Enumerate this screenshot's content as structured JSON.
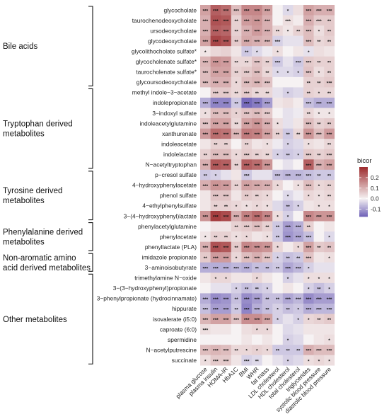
{
  "chart_data": {
    "type": "heatmap",
    "legend": {
      "title": "bicor",
      "ticks": [
        "0.2",
        "0.1",
        "0.0",
        "-0.1"
      ],
      "tick_values": [
        0.2,
        0.1,
        0.0,
        -0.1
      ],
      "range": [
        -0.17,
        0.3
      ],
      "placement": "right"
    },
    "columns": [
      "plasma glucose",
      "plasma insulin",
      "HOMA-IR",
      "HbA1C",
      "BMI",
      "WHR",
      "fat mass",
      "LDL cholesterol",
      "HDL cholesterol",
      "total cholesterol",
      "triglycerides",
      "systolic blood pressure",
      "diastolic blood pressure"
    ],
    "rows": [
      "glycocholate",
      "taurochenodeoxycholate",
      "ursodeoxycholate",
      "glycodeoxycholate",
      "glycolithocholate sulfate*",
      "glycocholenate sulfate*",
      "taurocholenate sulfate*",
      "glycoursodeoxycholate",
      "methyl indole−3−acetate",
      "indolepropionate",
      "3−indoxyl sulfate",
      "indoleacetylglutamine",
      "xanthurenate",
      "indoleacetate",
      "indolelactate",
      "N−acetyltryptophan",
      "p−cresol sulfate",
      "4−hydroxyphenylacetate",
      "phenol sulfate",
      "4−ethylphenylsulfate",
      "3−(4−hydroxyphenyl)lactate",
      "phenylacetylglutamine",
      "phenylacetate",
      "phenyllactate (PLA)",
      "imidazole propionate",
      "3−aminoisobutyrate",
      "trimethylamine N−oxide",
      "3−(3−hydroxyphenyl)propionate",
      "3−phenylpropionate (hydrocinnamate)",
      "hippurate",
      "isovalerate (i5:0)",
      "caproate (6:0)",
      "spermidine",
      "N−acetylputrescine",
      "succinate"
    ],
    "groups": [
      {
        "label": [
          "Bile acids"
        ],
        "rows": [
          0,
          7
        ]
      },
      {
        "label": [
          "Tryptophan derived",
          "metabolites"
        ],
        "rows": [
          8,
          15
        ]
      },
      {
        "label": [
          "Tyrosine derived",
          "metabolites"
        ],
        "rows": [
          16,
          20
        ]
      },
      {
        "label": [
          "Phenylalanine derived",
          "metabolites"
        ],
        "rows": [
          21,
          23
        ]
      },
      {
        "label": [
          "Non-aromatic amino",
          "acid derived metabolites"
        ],
        "rows": [
          24,
          25
        ]
      },
      {
        "label": [
          "Other metabolites"
        ],
        "rows": [
          26,
          34
        ]
      }
    ],
    "values": [
      [
        0.12,
        0.22,
        0.2,
        0.08,
        0.16,
        0.16,
        0.12,
        0.0,
        -0.03,
        0.03,
        0.12,
        0.1,
        0.1
      ],
      [
        0.1,
        0.24,
        0.23,
        0.05,
        0.13,
        0.14,
        0.1,
        0.0,
        0.03,
        0.01,
        0.1,
        0.06,
        0.06
      ],
      [
        0.1,
        0.22,
        0.21,
        0.05,
        0.1,
        0.13,
        0.1,
        0.04,
        0.02,
        0.05,
        0.08,
        0.03,
        0.06
      ],
      [
        0.12,
        0.26,
        0.24,
        0.06,
        0.11,
        0.1,
        0.09,
        -0.04,
        -0.02,
        -0.02,
        0.08,
        0.04,
        0.05
      ],
      [
        0.02,
        0.04,
        0.05,
        0.02,
        -0.05,
        -0.03,
        -0.01,
        0.03,
        0.0,
        0.02,
        -0.02,
        0.03,
        0.02
      ],
      [
        0.09,
        0.14,
        0.13,
        0.04,
        0.04,
        0.07,
        0.05,
        -0.05,
        -0.02,
        -0.05,
        0.06,
        0.05,
        0.05
      ],
      [
        0.08,
        0.12,
        0.12,
        0.05,
        0.06,
        0.08,
        0.04,
        -0.03,
        -0.03,
        -0.04,
        0.07,
        0.03,
        0.05
      ],
      [
        0.08,
        0.1,
        0.1,
        0.04,
        0.08,
        0.09,
        0.07,
        0.0,
        0.0,
        0.0,
        0.05,
        0.05,
        0.06
      ],
      [
        0.0,
        0.06,
        0.06,
        0.04,
        0.06,
        0.04,
        0.04,
        -0.02,
        -0.04,
        -0.03,
        0.05,
        0.04,
        0.04
      ],
      [
        -0.08,
        -0.13,
        -0.13,
        -0.05,
        -0.16,
        -0.14,
        -0.1,
        0.02,
        0.03,
        0.01,
        -0.06,
        -0.08,
        -0.08
      ],
      [
        0.03,
        0.08,
        0.08,
        0.05,
        0.07,
        0.08,
        0.06,
        0.0,
        -0.02,
        -0.01,
        0.04,
        0.02,
        0.02
      ],
      [
        0.07,
        0.12,
        0.12,
        0.04,
        0.12,
        0.14,
        0.1,
        0.03,
        -0.02,
        0.02,
        0.08,
        0.05,
        0.06
      ],
      [
        0.13,
        0.2,
        0.19,
        0.09,
        0.18,
        0.17,
        0.12,
        0.05,
        -0.05,
        0.04,
        0.14,
        0.08,
        0.13
      ],
      [
        0.02,
        0.05,
        0.05,
        0.0,
        0.05,
        0.02,
        0.03,
        -0.01,
        -0.04,
        -0.03,
        0.03,
        0.02,
        0.04
      ],
      [
        0.05,
        0.08,
        0.08,
        0.04,
        0.06,
        0.05,
        0.04,
        -0.04,
        -0.05,
        -0.04,
        0.06,
        0.05,
        0.06
      ],
      [
        0.1,
        0.23,
        0.22,
        0.05,
        0.22,
        0.2,
        0.14,
        0.0,
        -0.02,
        0.0,
        0.22,
        0.1,
        0.12
      ],
      [
        -0.05,
        -0.04,
        -0.02,
        0.02,
        -0.05,
        -0.02,
        -0.02,
        -0.06,
        -0.07,
        -0.07,
        -0.06,
        -0.05,
        -0.05
      ],
      [
        0.1,
        0.14,
        0.13,
        0.05,
        0.12,
        0.11,
        0.1,
        0.04,
        0.0,
        0.03,
        0.08,
        0.04,
        0.05
      ],
      [
        0.02,
        0.07,
        0.07,
        0.02,
        0.06,
        0.05,
        0.04,
        0.0,
        -0.03,
        -0.01,
        0.04,
        0.03,
        0.04
      ],
      [
        0.02,
        0.05,
        0.05,
        0.04,
        0.03,
        0.04,
        0.03,
        -0.03,
        -0.06,
        -0.04,
        0.02,
        0.03,
        0.03
      ],
      [
        0.14,
        0.27,
        0.25,
        0.1,
        0.17,
        0.2,
        0.16,
        0.03,
        -0.04,
        0.0,
        0.16,
        0.14,
        0.14
      ],
      [
        0.0,
        0.02,
        0.02,
        0.05,
        0.06,
        0.08,
        0.05,
        -0.05,
        -0.1,
        -0.08,
        0.05,
        0.0,
        0.02
      ],
      [
        0.02,
        0.05,
        0.05,
        0.03,
        0.04,
        0.02,
        0.03,
        -0.05,
        -0.11,
        -0.09,
        -0.06,
        0.0,
        -0.03
      ],
      [
        0.1,
        0.24,
        0.23,
        0.06,
        0.16,
        0.15,
        0.14,
        0.04,
        0.01,
        0.04,
        0.12,
        0.06,
        0.07
      ],
      [
        0.06,
        0.13,
        0.13,
        0.04,
        0.08,
        0.1,
        0.07,
        -0.04,
        -0.06,
        -0.05,
        0.07,
        0.02,
        0.03
      ],
      [
        -0.08,
        -0.08,
        -0.08,
        -0.07,
        -0.08,
        -0.06,
        -0.06,
        -0.05,
        -0.09,
        -0.07,
        -0.04,
        -0.02,
        -0.02
      ],
      [
        0.02,
        0.04,
        0.04,
        0.02,
        0.02,
        0.04,
        0.02,
        0.0,
        -0.04,
        -0.02,
        0.03,
        0.03,
        0.03
      ],
      [
        0.0,
        -0.02,
        -0.02,
        -0.04,
        -0.06,
        -0.05,
        -0.04,
        0.0,
        0.02,
        0.0,
        -0.04,
        -0.06,
        -0.04
      ],
      [
        -0.08,
        -0.12,
        -0.11,
        -0.06,
        -0.12,
        -0.1,
        -0.06,
        -0.06,
        -0.09,
        -0.07,
        -0.12,
        -0.1,
        -0.1
      ],
      [
        -0.06,
        -0.1,
        -0.1,
        -0.05,
        -0.13,
        -0.08,
        -0.06,
        -0.04,
        -0.06,
        -0.05,
        -0.08,
        -0.07,
        -0.07
      ],
      [
        0.09,
        0.12,
        0.12,
        0.07,
        0.15,
        0.15,
        0.12,
        -0.04,
        -0.02,
        -0.04,
        0.04,
        0.05,
        0.06
      ],
      [
        0.03,
        0.02,
        0.02,
        0.0,
        0.03,
        0.04,
        0.04,
        0.0,
        -0.03,
        -0.02,
        0.02,
        0.02,
        0.02
      ],
      [
        0.0,
        0.0,
        0.0,
        0.0,
        0.02,
        0.0,
        0.02,
        0.0,
        -0.04,
        -0.03,
        0.0,
        0.02,
        0.03
      ],
      [
        0.08,
        0.09,
        0.08,
        0.04,
        0.04,
        0.05,
        0.04,
        -0.05,
        -0.05,
        -0.05,
        0.1,
        0.08,
        0.08
      ],
      [
        0.03,
        0.06,
        0.06,
        0.02,
        -0.04,
        -0.03,
        0.0,
        -0.02,
        -0.04,
        -0.03,
        0.03,
        0.04,
        0.03
      ]
    ],
    "stars": [
      [
        "***",
        "***",
        "***",
        "***",
        "***",
        "***",
        "***",
        "",
        "*",
        "",
        "***",
        "***",
        "***"
      ],
      [
        "***",
        "***",
        "***",
        "**",
        "***",
        "***",
        "***",
        "",
        "***",
        "",
        "***",
        "***",
        "**"
      ],
      [
        "***",
        "***",
        "***",
        "**",
        "***",
        "***",
        "***",
        "**",
        "*",
        "**",
        "***",
        "*",
        "**"
      ],
      [
        "***",
        "***",
        "***",
        "**",
        "***",
        "***",
        "***",
        "***",
        "",
        "",
        "***",
        "**",
        "**"
      ],
      [
        "*",
        "",
        "",
        "",
        "**",
        "*",
        "",
        "*",
        "",
        "",
        "*",
        "",
        ""
      ],
      [
        "***",
        "***",
        "***",
        "**",
        "**",
        "***",
        "**",
        "***",
        "",
        "***",
        "***",
        "**",
        "**"
      ],
      [
        "***",
        "***",
        "***",
        "**",
        "***",
        "***",
        "**",
        "*",
        "*",
        "*",
        "***",
        "*",
        "**"
      ],
      [
        "***",
        "***",
        "***",
        "*",
        "***",
        "***",
        "***",
        "",
        "",
        "",
        "**",
        "**",
        "***"
      ],
      [
        "",
        "***",
        "***",
        "**",
        "***",
        "**",
        "**",
        "",
        "*",
        "",
        "**",
        "*",
        "**"
      ],
      [
        "***",
        "***",
        "***",
        "**",
        "***",
        "***",
        "***",
        "",
        "",
        "",
        "***",
        "***",
        "***"
      ],
      [
        "*",
        "***",
        "***",
        "*",
        "***",
        "***",
        "***",
        "",
        "",
        "",
        "**",
        "*",
        "*"
      ],
      [
        "***",
        "***",
        "***",
        "**",
        "***",
        "***",
        "***",
        "*",
        "",
        "",
        "***",
        "**",
        "**"
      ],
      [
        "***",
        "***",
        "***",
        "***",
        "***",
        "***",
        "***",
        "**",
        "**",
        "**",
        "***",
        "***",
        "***"
      ],
      [
        "",
        "**",
        "**",
        "",
        "**",
        "",
        "*",
        "",
        "*",
        "",
        "*",
        "",
        "**"
      ],
      [
        "**",
        "***",
        "***",
        "*",
        "***",
        "**",
        "**",
        "*",
        "**",
        "*",
        "***",
        "**",
        "***"
      ],
      [
        "***",
        "***",
        "***",
        "**",
        "***",
        "***",
        "***",
        "",
        "",
        "",
        "***",
        "***",
        "***"
      ],
      [
        "**",
        "*",
        "",
        "",
        "***",
        "",
        "",
        "***",
        "***",
        "***",
        "***",
        "**",
        "**"
      ],
      [
        "***",
        "***",
        "***",
        "**",
        "***",
        "***",
        "***",
        "*",
        "",
        "*",
        "***",
        "*",
        "**"
      ],
      [
        "",
        "***",
        "***",
        "",
        "**",
        "**",
        "*",
        "",
        "*",
        "",
        "*",
        "*",
        "**"
      ],
      [
        "",
        "**",
        "**",
        "*",
        "*",
        "*",
        "*",
        "",
        "**",
        "*",
        "",
        "*",
        "*"
      ],
      [
        "***",
        "***",
        "***",
        "***",
        "***",
        "***",
        "***",
        "*",
        "*",
        "",
        "***",
        "***",
        "***"
      ],
      [
        "",
        "",
        "",
        "**",
        "***",
        "***",
        "**",
        "**",
        "***",
        "***",
        "**",
        "",
        ""
      ],
      [
        "*",
        "**",
        "**",
        "*",
        "*",
        "",
        "*",
        "**",
        "***",
        "***",
        "***",
        "",
        "*"
      ],
      [
        "***",
        "***",
        "***",
        "**",
        "***",
        "***",
        "***",
        "*",
        "",
        "*",
        "***",
        "**",
        "**"
      ],
      [
        "**",
        "***",
        "***",
        "*",
        "***",
        "***",
        "***",
        "*",
        "**",
        "**",
        "***",
        "",
        "*"
      ],
      [
        "***",
        "***",
        "***",
        "***",
        "***",
        "**",
        "**",
        "**",
        "***",
        "***",
        "*",
        "",
        ""
      ],
      [
        "",
        "*",
        "*",
        "",
        "",
        "*",
        "",
        "",
        "*",
        "",
        "*",
        "*",
        "*"
      ],
      [
        "",
        "",
        "",
        "*",
        "**",
        "**",
        "*",
        "",
        "",
        "",
        "*",
        "**",
        "*"
      ],
      [
        "***",
        "***",
        "***",
        "**",
        "***",
        "***",
        "**",
        "**",
        "***",
        "***",
        "***",
        "***",
        "***"
      ],
      [
        "***",
        "***",
        "***",
        "**",
        "***",
        "***",
        "**",
        "*",
        "**",
        "*",
        "***",
        "***",
        "***"
      ],
      [
        "***",
        "***",
        "***",
        "***",
        "***",
        "***",
        "***",
        "*",
        "",
        "*",
        "*",
        "**",
        "**"
      ],
      [
        "***",
        "",
        "",
        "",
        "",
        "*",
        "*",
        "",
        "",
        "",
        "",
        "",
        ""
      ],
      [
        "",
        "",
        "",
        "",
        "",
        "",
        "",
        "",
        "*",
        "",
        "",
        "",
        "*"
      ],
      [
        "***",
        "***",
        "***",
        "**",
        "*",
        "*",
        "*",
        "**",
        "**",
        "**",
        "***",
        "***",
        "***"
      ],
      [
        "*",
        "***",
        "***",
        "",
        "***",
        "**",
        "",
        "",
        "*",
        "",
        "*",
        "*",
        "*"
      ]
    ]
  },
  "colors": {
    "high": "#9c2a2c",
    "mid": "#f6f2f3",
    "low": "#6f62b8",
    "text": "#111111"
  }
}
